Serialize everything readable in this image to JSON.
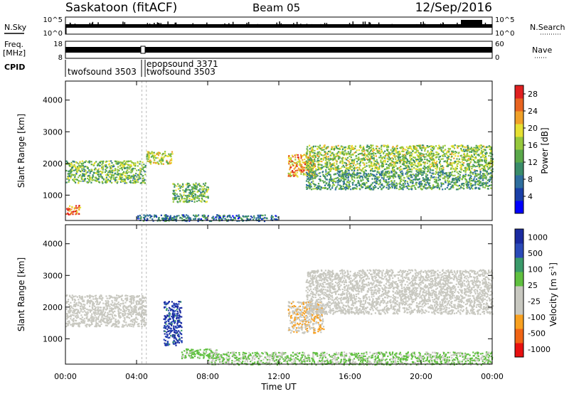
{
  "header": {
    "site": "Saskatoon (fitACF)",
    "beam": "Beam 05",
    "date": "12/Sep/2016"
  },
  "labels": {
    "nsky": "N.Sky",
    "nsearch": "N.Search",
    "freq": "Freq.",
    "freq_unit": "[MHz]",
    "nave": "Nave",
    "cpid": "CPID",
    "ylabel": "Slant Range [km]",
    "xlabel": "Time UT"
  },
  "noise_panel": {
    "left_ticks": [
      "10^5",
      "10^0"
    ],
    "right_ticks": [
      "10^5",
      "10^0"
    ]
  },
  "freq_panel": {
    "left_ticks": [
      "18",
      "8"
    ],
    "right_ticks": [
      "60",
      "0"
    ]
  },
  "cpid_panel": {
    "entries": [
      "twofsound 3503",
      "epopsound 3371",
      "twofsound 3503"
    ]
  },
  "colors": {
    "power_scale": [
      "#0000ff",
      "#1a3fa8",
      "#2e6e9e",
      "#3a8c6a",
      "#5aa84a",
      "#96c83c",
      "#e6e032",
      "#f0a028",
      "#e86420",
      "#e02020"
    ],
    "velocity_scale": [
      "#e81010",
      "#f06414",
      "#f8a020",
      "#c8c8c0",
      "#c8c8c0",
      "#60c040",
      "#3a9a6a",
      "#2a4ab8",
      "#1a2aa0"
    ]
  },
  "chart_data": [
    {
      "type": "heatmap",
      "title": "",
      "xlabel": "Time UT",
      "ylabel": "Slant Range [km]",
      "x_unit": "hours UT",
      "xlim": [
        0,
        24
      ],
      "ylim": [
        200,
        4600
      ],
      "x_ticks": [
        "00:00",
        "04:00",
        "08:00",
        "12:00",
        "16:00",
        "20:00",
        "00:00"
      ],
      "y_ticks": [
        "1000",
        "2000",
        "3000",
        "4000"
      ],
      "colorbar": {
        "label": "Power [dB]",
        "ticks": [
          "4",
          "8",
          "12",
          "16",
          "20",
          "24",
          "28"
        ],
        "range": [
          0,
          30
        ]
      },
      "echo_regions": [
        {
          "t_start": 0.0,
          "t_end": 0.8,
          "range_km": [
            400,
            700
          ],
          "value_db": 26
        },
        {
          "t_start": 0.0,
          "t_end": 4.5,
          "range_km": [
            1400,
            2100
          ],
          "value_db": 14
        },
        {
          "t_start": 4.5,
          "t_end": 6.0,
          "range_km": [
            2000,
            2400
          ],
          "value_db": 18
        },
        {
          "t_start": 6.0,
          "t_end": 8.0,
          "range_km": [
            800,
            1400
          ],
          "value_db": 14
        },
        {
          "t_start": 12.5,
          "t_end": 14.0,
          "range_km": [
            1600,
            2300
          ],
          "value_db": 22
        },
        {
          "t_start": 13.5,
          "t_end": 24.0,
          "range_km": [
            1800,
            2600
          ],
          "value_db": 16
        },
        {
          "t_start": 13.5,
          "t_end": 24.0,
          "range_km": [
            1200,
            1800
          ],
          "value_db": 12
        },
        {
          "t_start": 4.0,
          "t_end": 12.0,
          "range_km": [
            200,
            400
          ],
          "value_db": 8
        }
      ]
    },
    {
      "type": "heatmap",
      "title": "",
      "xlabel": "Time UT",
      "ylabel": "Slant Range [km]",
      "x_unit": "hours UT",
      "xlim": [
        0,
        24
      ],
      "ylim": [
        200,
        4600
      ],
      "x_ticks": [
        "00:00",
        "04:00",
        "08:00",
        "12:00",
        "16:00",
        "20:00",
        "00:00"
      ],
      "y_ticks": [
        "1000",
        "2000",
        "3000",
        "4000"
      ],
      "colorbar": {
        "label": "Velocity [m s^-1]",
        "ticks": [
          "1000",
          "500",
          "100",
          "25",
          "-25",
          "-100",
          "-500",
          "-1000"
        ],
        "range": [
          -1000,
          1000
        ]
      },
      "echo_regions": [
        {
          "t_start": 0.0,
          "t_end": 4.5,
          "range_km": [
            1400,
            2400
          ],
          "value_ms": 0
        },
        {
          "t_start": 5.5,
          "t_end": 6.5,
          "range_km": [
            800,
            2200
          ],
          "value_ms": 800
        },
        {
          "t_start": 6.5,
          "t_end": 8.5,
          "range_km": [
            400,
            700
          ],
          "value_ms": 150
        },
        {
          "t_start": 12.5,
          "t_end": 14.5,
          "range_km": [
            1200,
            2200
          ],
          "value_ms": -300
        },
        {
          "t_start": 13.5,
          "t_end": 24.0,
          "range_km": [
            1800,
            3200
          ],
          "value_ms": 0
        },
        {
          "t_start": 8.0,
          "t_end": 24.0,
          "range_km": [
            200,
            600
          ],
          "value_ms": 120
        }
      ]
    }
  ]
}
